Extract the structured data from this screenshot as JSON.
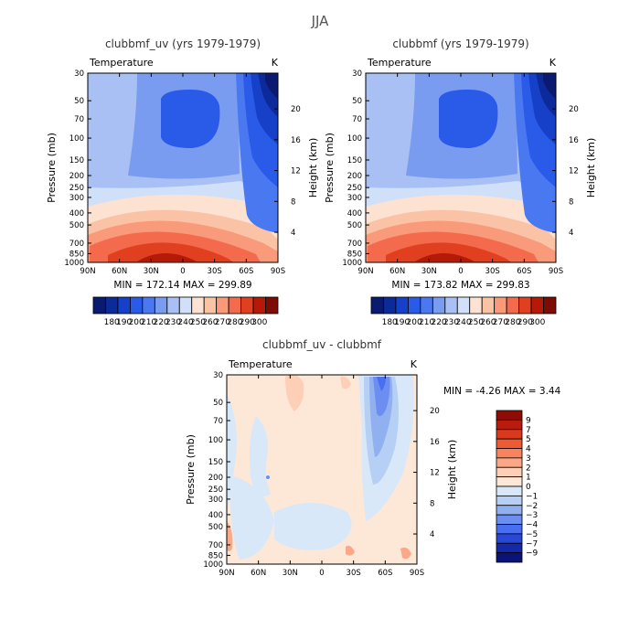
{
  "figure_title": "JJA",
  "chart_data": [
    {
      "type": "contour",
      "title": "clubbmf_uv (yrs 1979-1979)",
      "subtitle_left": "Temperature",
      "subtitle_right": "K",
      "xlabel": "",
      "ylabel": "Pressure (mb)",
      "ylabel_right": "Height (km)",
      "x_ticks": [
        "90N",
        "60N",
        "30N",
        "0",
        "30S",
        "60S",
        "90S"
      ],
      "y_ticks": [
        "30",
        "50",
        "70",
        "100",
        "150",
        "200",
        "250",
        "300",
        "400",
        "500",
        "700",
        "850",
        "1000"
      ],
      "y_ticks_right": [
        "20",
        "16",
        "12",
        "8",
        "4"
      ],
      "min_max_text": "MIN = 172.14   MAX = 299.89",
      "min": 172.14,
      "max": 299.89,
      "colorbar_labels": [
        "180",
        "190",
        "200",
        "210",
        "220",
        "230",
        "240",
        "250",
        "260",
        "270",
        "280",
        "290",
        "300"
      ],
      "colorbar_colors": [
        "#0a1a70",
        "#0c2a9a",
        "#1640c8",
        "#2a5ae8",
        "#4a78f0",
        "#7a9cf0",
        "#a8c0f4",
        "#d0e0f8",
        "#fde2d2",
        "#fbc3a6",
        "#f99a7a",
        "#f36b4c",
        "#e0401f",
        "#b51a08",
        "#7e0a02"
      ]
    },
    {
      "type": "contour",
      "title": "clubbmf (yrs 1979-1979)",
      "subtitle_left": "Temperature",
      "subtitle_right": "K",
      "xlabel": "",
      "ylabel": "Pressure (mb)",
      "ylabel_right": "Height (km)",
      "x_ticks": [
        "90N",
        "60N",
        "30N",
        "0",
        "30S",
        "60S",
        "90S"
      ],
      "y_ticks": [
        "30",
        "50",
        "70",
        "100",
        "150",
        "200",
        "250",
        "300",
        "400",
        "500",
        "700",
        "850",
        "1000"
      ],
      "y_ticks_right": [
        "20",
        "16",
        "12",
        "8",
        "4"
      ],
      "min_max_text": "MIN = 173.82   MAX = 299.83",
      "min": 173.82,
      "max": 299.83,
      "colorbar_labels": [
        "180",
        "190",
        "200",
        "210",
        "220",
        "230",
        "240",
        "250",
        "260",
        "270",
        "280",
        "290",
        "300"
      ],
      "colorbar_colors": [
        "#0a1a70",
        "#0c2a9a",
        "#1640c8",
        "#2a5ae8",
        "#4a78f0",
        "#7a9cf0",
        "#a8c0f4",
        "#d0e0f8",
        "#fde2d2",
        "#fbc3a6",
        "#f99a7a",
        "#f36b4c",
        "#e0401f",
        "#b51a08",
        "#7e0a02"
      ]
    },
    {
      "type": "contour",
      "title": "clubbmf_uv - clubbmf",
      "subtitle_left": "Temperature",
      "subtitle_right": "K",
      "xlabel": "",
      "ylabel": "Pressure (mb)",
      "ylabel_right": "Height (km)",
      "x_ticks": [
        "90N",
        "60N",
        "30N",
        "0",
        "30S",
        "60S",
        "90S"
      ],
      "y_ticks": [
        "30",
        "50",
        "70",
        "100",
        "150",
        "200",
        "250",
        "300",
        "400",
        "500",
        "700",
        "850",
        "1000"
      ],
      "y_ticks_right": [
        "20",
        "16",
        "12",
        "8",
        "4"
      ],
      "min_max_text": "MIN =   -4.26   MAX =     3.44",
      "min": -4.26,
      "max": 3.44,
      "colorbar_labels": [
        "9",
        "7",
        "5",
        "4",
        "3",
        "2",
        "1",
        "0",
        "−1",
        "−2",
        "−3",
        "−4",
        "−5",
        "−7",
        "−9"
      ],
      "colorbar_colors": [
        "#8e0c05",
        "#b81c0c",
        "#d93a1d",
        "#ef5a33",
        "#f9835c",
        "#fba888",
        "#fdcfb6",
        "#fde8d8",
        "#d8e8f8",
        "#b6cff4",
        "#90b0f0",
        "#6c8ef0",
        "#4a6ef0",
        "#2a48d8",
        "#1428a8",
        "#0a1478"
      ]
    }
  ]
}
